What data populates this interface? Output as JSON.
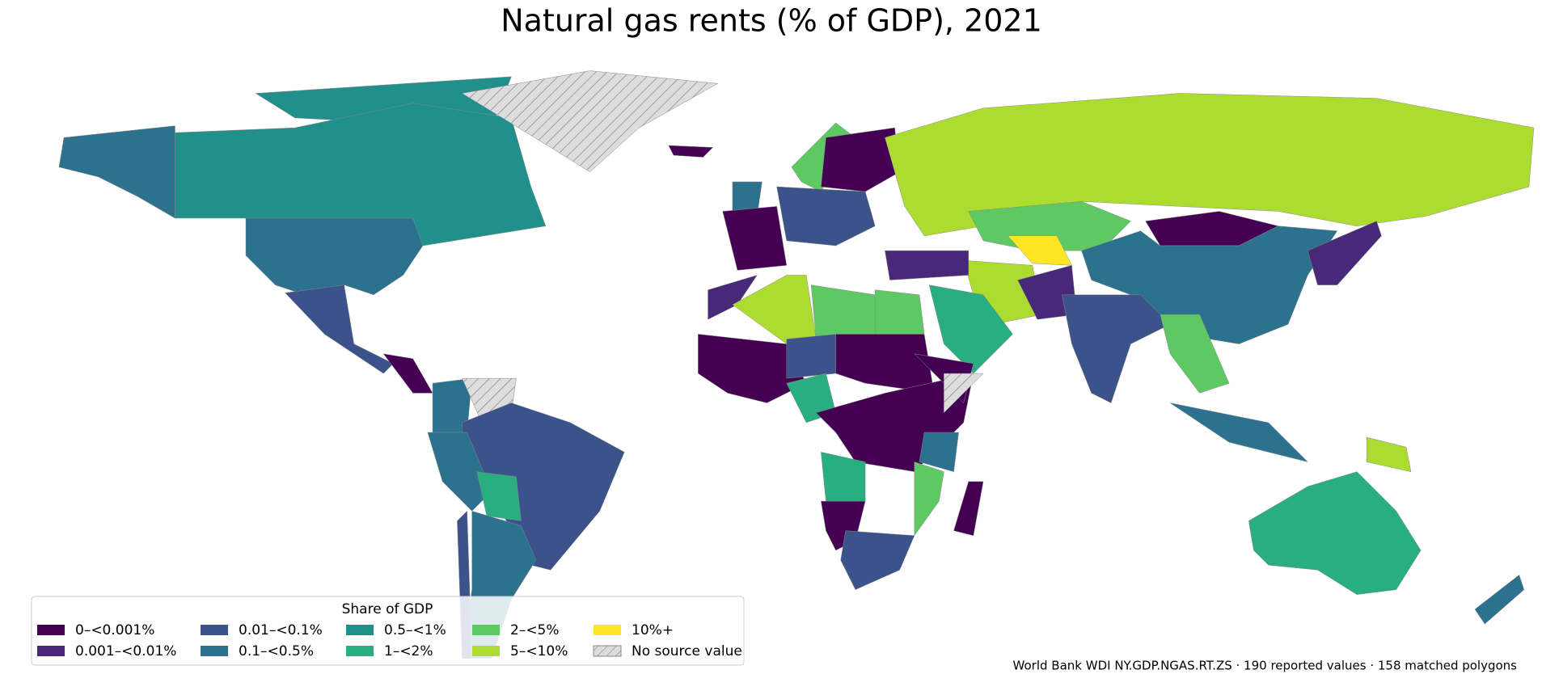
{
  "title": "Natural gas rents (% of GDP), 2021",
  "legend": {
    "title": "Share of GDP",
    "items": [
      {
        "label": "0–<0.001%",
        "color": "#440154"
      },
      {
        "label": "0.001–<0.01%",
        "color": "#482878"
      },
      {
        "label": "0.01–<0.1%",
        "color": "#3b528b"
      },
      {
        "label": "0.1–<0.5%",
        "color": "#2c718e"
      },
      {
        "label": "0.5–<1%",
        "color": "#21908d"
      },
      {
        "label": "1–<2%",
        "color": "#28ae80"
      },
      {
        "label": "2–<5%",
        "color": "#5ec962"
      },
      {
        "label": "5–<10%",
        "color": "#addc30"
      },
      {
        "label": "10%+",
        "color": "#fde725"
      },
      {
        "label": "No source value",
        "color": "#dddddd",
        "hatch": true
      }
    ]
  },
  "footer": "World Bank WDI NY.GDP.NGAS.RT.ZS · 190 reported values · 158 matched polygons"
}
